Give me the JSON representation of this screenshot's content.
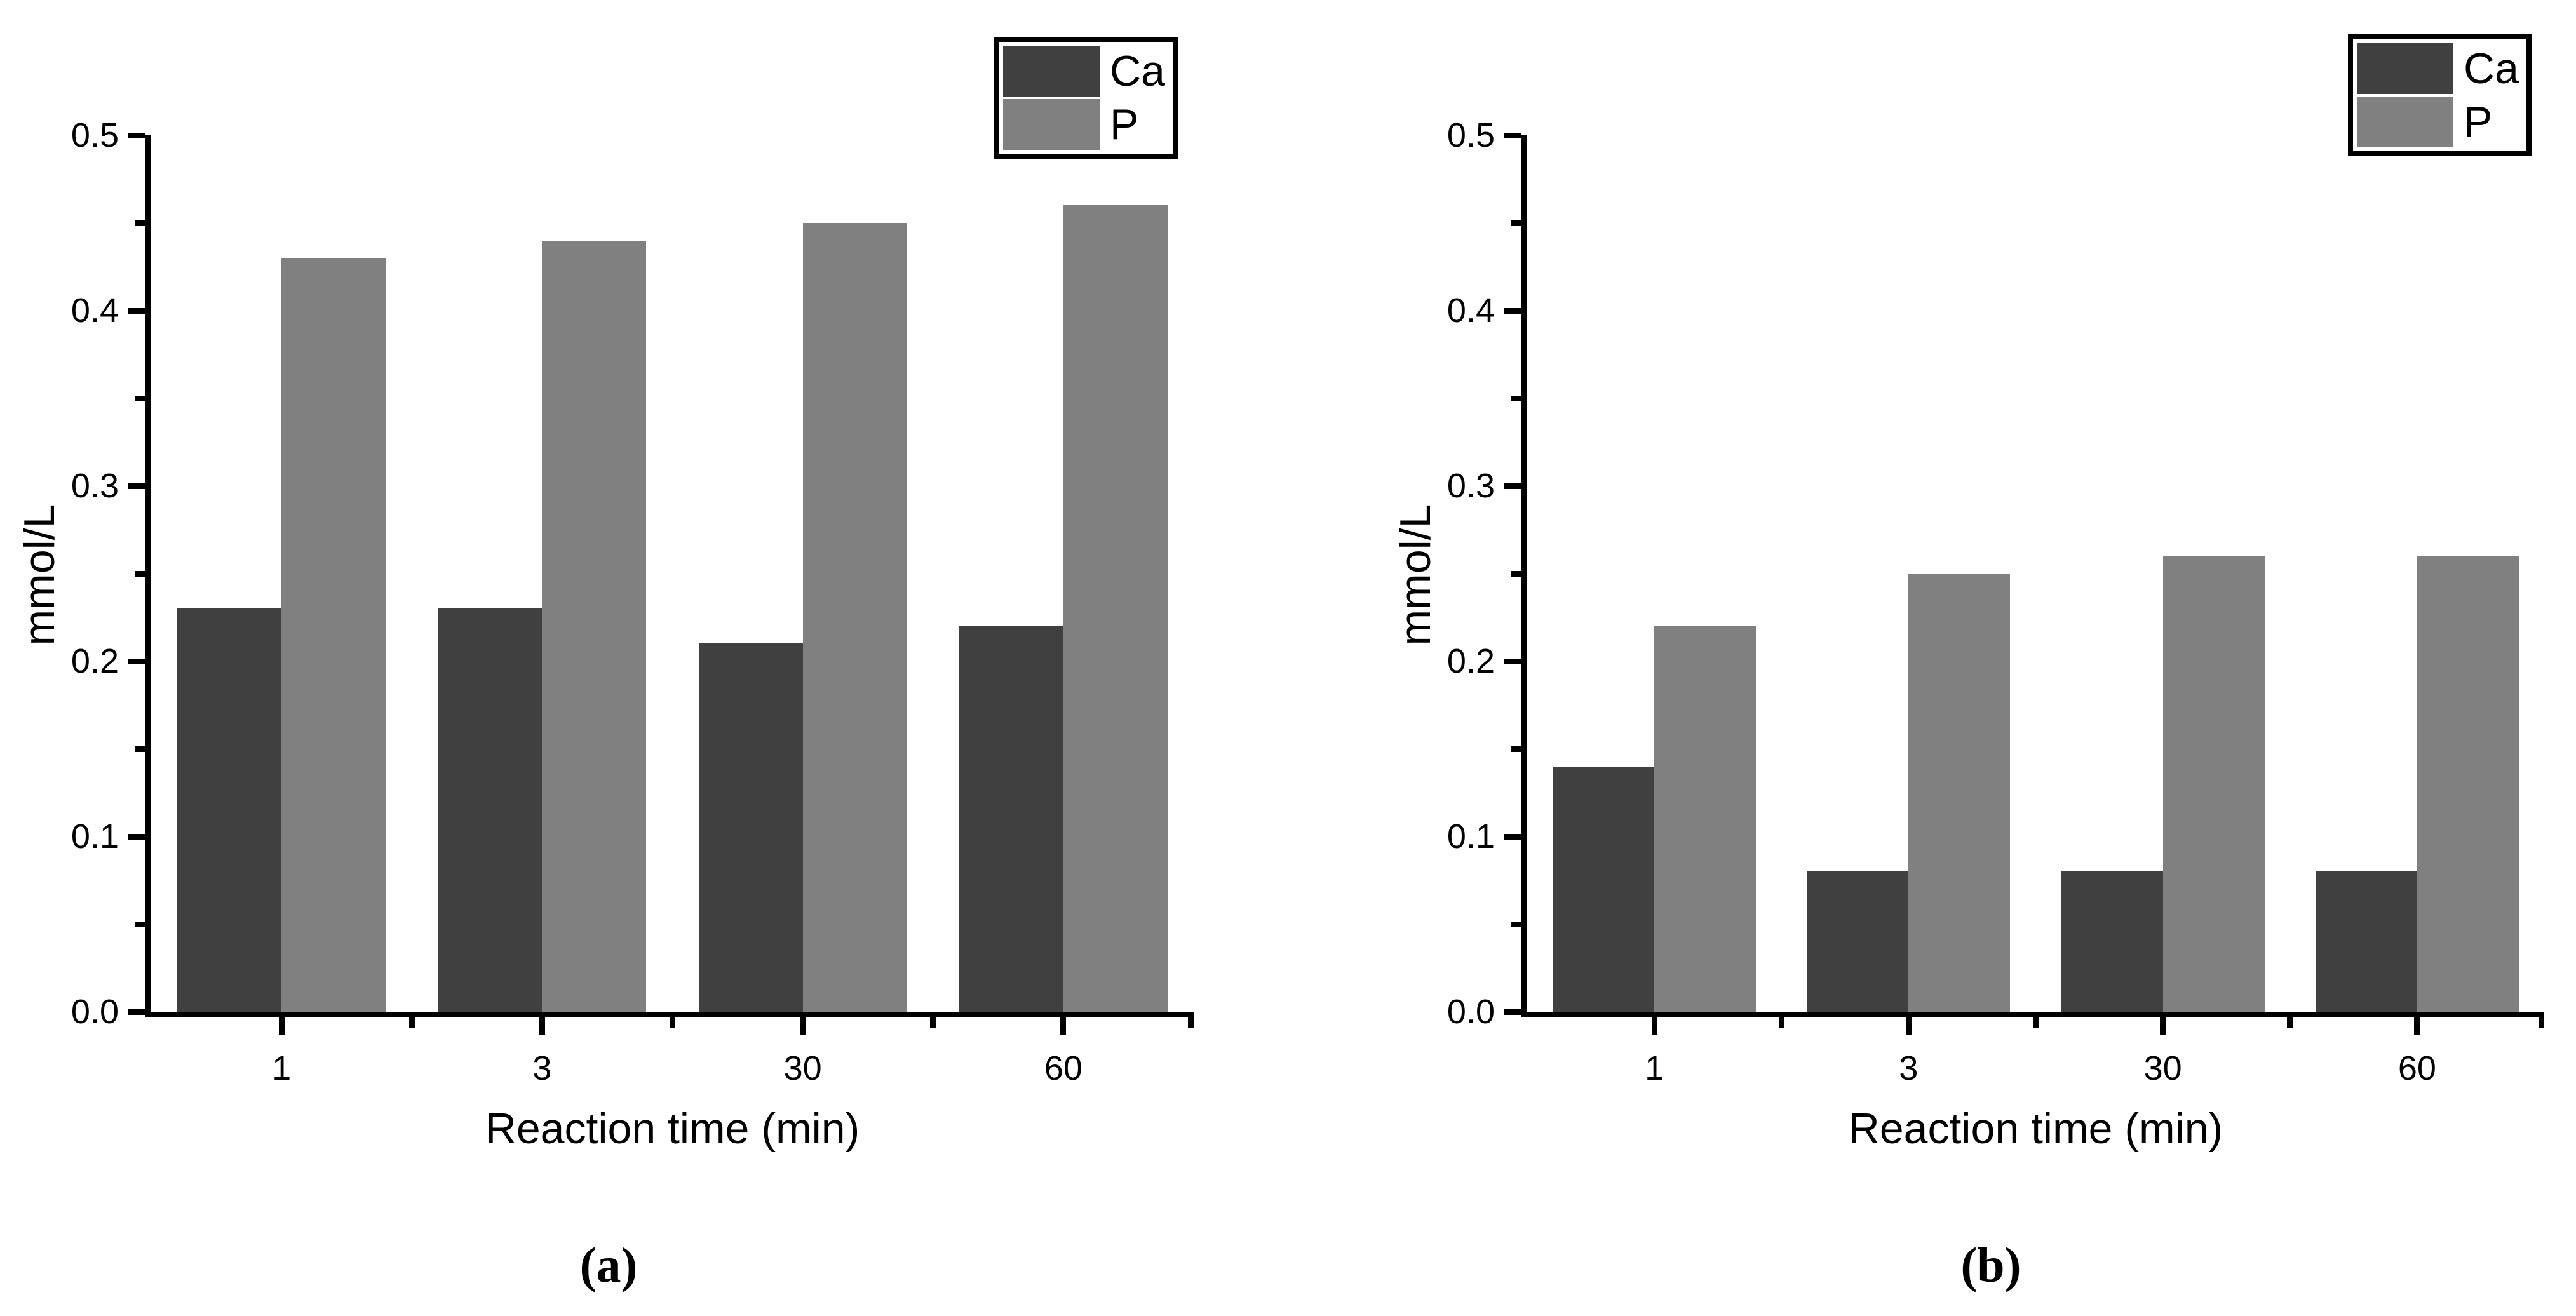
{
  "colors": {
    "ca_series": "#404040",
    "p_series": "#808080",
    "axis": "#000000",
    "background": "#ffffff"
  },
  "chart_data": [
    {
      "panel": "a",
      "type": "bar",
      "caption": "(a)",
      "title": "",
      "xlabel": "Reaction time (min)",
      "ylabel": "mmol/L",
      "categories": [
        "1",
        "3",
        "30",
        "60"
      ],
      "series": [
        {
          "name": "Ca",
          "color": "#404040",
          "values": [
            0.23,
            0.23,
            0.21,
            0.22
          ]
        },
        {
          "name": "P",
          "color": "#808080",
          "values": [
            0.43,
            0.44,
            0.45,
            0.46
          ]
        }
      ],
      "ylim": [
        0,
        0.5
      ],
      "yticks": [
        "0.0",
        "0.1",
        "0.2",
        "0.3",
        "0.4",
        "0.5"
      ],
      "ytick_minor_interval": 0.05,
      "grid": false,
      "legend_position": "top-right",
      "legend_entries": [
        "Ca",
        "P"
      ]
    },
    {
      "panel": "b",
      "type": "bar",
      "caption": "(b)",
      "title": "",
      "xlabel": "Reaction time (min)",
      "ylabel": "mmol/L",
      "categories": [
        "1",
        "3",
        "30",
        "60"
      ],
      "series": [
        {
          "name": "Ca",
          "color": "#404040",
          "values": [
            0.14,
            0.08,
            0.08,
            0.08
          ]
        },
        {
          "name": "P",
          "color": "#808080",
          "values": [
            0.22,
            0.25,
            0.26,
            0.26
          ]
        }
      ],
      "ylim": [
        0,
        0.5
      ],
      "yticks": [
        "0.0",
        "0.1",
        "0.2",
        "0.3",
        "0.4",
        "0.5"
      ],
      "ytick_minor_interval": 0.05,
      "grid": false,
      "legend_position": "top-right",
      "legend_entries": [
        "Ca",
        "P"
      ]
    }
  ]
}
